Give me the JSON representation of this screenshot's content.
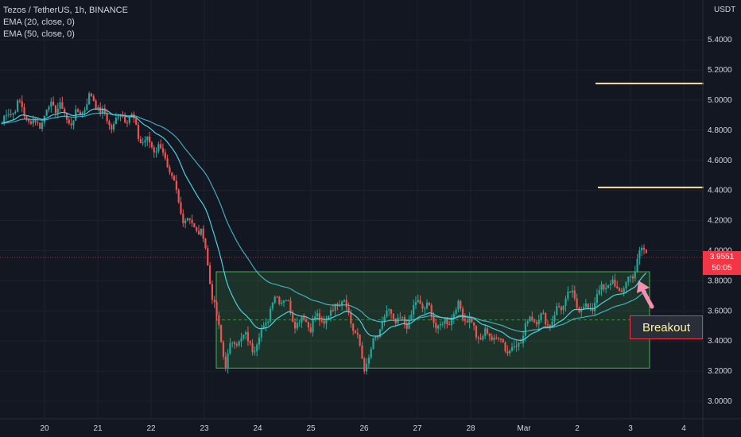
{
  "legend": {
    "symbol": "Tezos / TetherUS, 1h, BINANCE",
    "ema20": "EMA (20, close, 0)",
    "ema50": "EMA (50, close, 0)"
  },
  "price_axis": {
    "unit": "USDT"
  },
  "last_price": {
    "price": "3.9551",
    "countdown": "50:05"
  },
  "annotation": {
    "label": "Breakout"
  },
  "colors": {
    "background": "#131722",
    "up": "#26a69a",
    "down": "#ef5350",
    "ema": "#4dd0e1",
    "range_box": "#4caf50",
    "resistance": "#ffe0a3",
    "badge": "#f23645"
  },
  "chart_data": {
    "type": "line",
    "series": [
      {
        "name": "Tezos / TetherUS, 1h, BINANCE",
        "x": [
          "20",
          "21",
          "22",
          "23",
          "23.4",
          "24",
          "24.5",
          "25",
          "25.5",
          "26",
          "26.5",
          "27",
          "27.5",
          "28",
          "28.5",
          "Mar",
          "1.5",
          "2",
          "2.5",
          "3",
          "3.3"
        ],
        "values": [
          4.9,
          4.95,
          4.75,
          4.0,
          3.3,
          3.45,
          3.7,
          3.45,
          3.7,
          3.3,
          3.55,
          3.6,
          3.55,
          3.55,
          3.35,
          3.45,
          3.6,
          3.65,
          3.7,
          3.85,
          3.9551
        ]
      }
    ],
    "x_ticks": [
      "20",
      "21",
      "22",
      "23",
      "24",
      "25",
      "26",
      "27",
      "28",
      "Mar",
      "2",
      "3",
      "4"
    ],
    "y_ticks": [
      "3.0000",
      "3.2000",
      "3.4000",
      "3.6000",
      "3.8000",
      "4.0000",
      "4.2000",
      "4.4000",
      "4.6000",
      "4.8000",
      "5.0000",
      "5.2000",
      "5.4000"
    ],
    "ylim": [
      2.95,
      5.75
    ],
    "range_box": {
      "low": 3.22,
      "high": 3.86,
      "mid": 3.54
    },
    "resistance_levels": [
      4.42,
      5.11
    ]
  }
}
